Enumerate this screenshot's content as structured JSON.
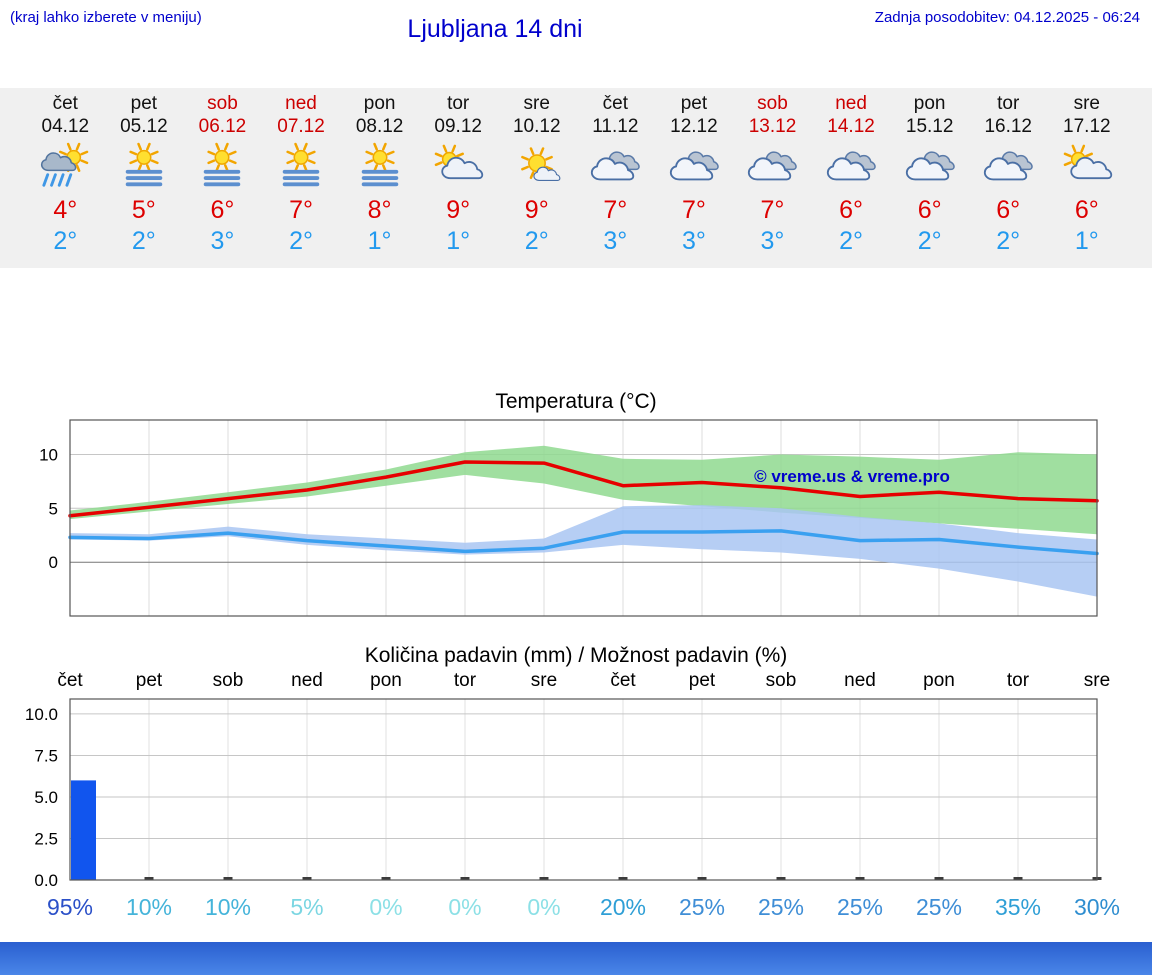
{
  "header": {
    "menu_hint": "(kraj lahko izberete v meniju)",
    "title": "Ljubljana 14 dni",
    "last_update": "Zadnja posodobitev: 04.12.2025 - 06:24"
  },
  "colors": {
    "accent_blue": "#0000cc",
    "temp_max_red": "#dd0000",
    "temp_min_blue": "#2299ee",
    "weekend_red": "#cc0000",
    "weekday_black": "#111111",
    "strip_bg": "#f0f0f0",
    "bar_blue": "#1155ee",
    "footer_top": "#2a5fd0",
    "footer_bottom": "#4a86e8"
  },
  "forecast": {
    "days": [
      {
        "name": "čet",
        "date": "04.12",
        "weekend": false,
        "icon": "sun-rain-icon",
        "tmax": "4°",
        "tmin": "2°"
      },
      {
        "name": "pet",
        "date": "05.12",
        "weekend": false,
        "icon": "sun-fog-icon",
        "tmax": "5°",
        "tmin": "2°"
      },
      {
        "name": "sob",
        "date": "06.12",
        "weekend": true,
        "icon": "sun-fog-icon",
        "tmax": "6°",
        "tmin": "3°"
      },
      {
        "name": "ned",
        "date": "07.12",
        "weekend": true,
        "icon": "sun-fog-icon",
        "tmax": "7°",
        "tmin": "2°"
      },
      {
        "name": "pon",
        "date": "08.12",
        "weekend": false,
        "icon": "sun-fog-icon",
        "tmax": "8°",
        "tmin": "1°"
      },
      {
        "name": "tor",
        "date": "09.12",
        "weekend": false,
        "icon": "sun-cloud-icon",
        "tmax": "9°",
        "tmin": "1°"
      },
      {
        "name": "sre",
        "date": "10.12",
        "weekend": false,
        "icon": "mostly-sun-icon",
        "tmax": "9°",
        "tmin": "2°"
      },
      {
        "name": "čet",
        "date": "11.12",
        "weekend": false,
        "icon": "cloudy-icon",
        "tmax": "7°",
        "tmin": "3°"
      },
      {
        "name": "pet",
        "date": "12.12",
        "weekend": false,
        "icon": "cloudy-icon",
        "tmax": "7°",
        "tmin": "3°"
      },
      {
        "name": "sob",
        "date": "13.12",
        "weekend": true,
        "icon": "cloudy-icon",
        "tmax": "7°",
        "tmin": "3°"
      },
      {
        "name": "ned",
        "date": "14.12",
        "weekend": true,
        "icon": "cloudy-icon",
        "tmax": "6°",
        "tmin": "2°"
      },
      {
        "name": "pon",
        "date": "15.12",
        "weekend": false,
        "icon": "cloudy-icon",
        "tmax": "6°",
        "tmin": "2°"
      },
      {
        "name": "tor",
        "date": "16.12",
        "weekend": false,
        "icon": "cloudy-icon",
        "tmax": "6°",
        "tmin": "2°"
      },
      {
        "name": "sre",
        "date": "17.12",
        "weekend": false,
        "icon": "sun-cloud-icon",
        "tmax": "6°",
        "tmin": "1°"
      }
    ]
  },
  "chart_data": [
    {
      "type": "line",
      "title": "Temperatura (°C)",
      "categories": [
        "čet",
        "pet",
        "sob",
        "ned",
        "pon",
        "tor",
        "sre",
        "čet",
        "pet",
        "sob",
        "ned",
        "pon",
        "tor",
        "sre"
      ],
      "ylim": [
        -5,
        13.2
      ],
      "yticks": [
        0,
        5,
        10
      ],
      "grid": true,
      "watermark": "© vreme.us & vreme.pro",
      "series": [
        {
          "name": "max-temperature-line",
          "kind": "line",
          "color": "#e60000",
          "values": [
            4.3,
            5.1,
            5.9,
            6.7,
            7.9,
            9.3,
            9.2,
            7.1,
            7.4,
            6.9,
            6.1,
            6.5,
            5.9,
            5.7
          ]
        },
        {
          "name": "min-temperature-line",
          "kind": "line",
          "color": "#3aa0f0",
          "values": [
            2.3,
            2.2,
            2.7,
            2.0,
            1.5,
            1.0,
            1.3,
            2.8,
            2.8,
            2.9,
            2.0,
            2.1,
            1.4,
            0.8
          ]
        },
        {
          "name": "max-temperature-range-band",
          "kind": "band",
          "color": "#8fd98f",
          "upper": [
            4.8,
            5.6,
            6.5,
            7.4,
            8.6,
            10.2,
            10.8,
            9.6,
            9.5,
            10.0,
            9.8,
            9.5,
            10.2,
            10.0
          ],
          "lower": [
            4.0,
            4.7,
            5.4,
            6.1,
            7.1,
            8.1,
            7.3,
            5.8,
            5.2,
            4.6,
            4.1,
            3.6,
            3.1,
            2.6
          ]
        },
        {
          "name": "min-temperature-range-band",
          "kind": "band",
          "color": "#a9c6f2",
          "upper": [
            2.7,
            2.6,
            3.3,
            2.6,
            2.2,
            1.8,
            2.2,
            5.2,
            5.3,
            5.0,
            4.2,
            3.6,
            2.7,
            2.1
          ],
          "lower": [
            2.1,
            2.0,
            2.4,
            1.6,
            1.1,
            0.7,
            0.9,
            1.6,
            1.2,
            0.9,
            0.3,
            -0.6,
            -1.8,
            -3.2
          ]
        }
      ]
    },
    {
      "type": "bar",
      "title": "Količina padavin (mm) / Možnost padavin (%)",
      "categories": [
        "čet",
        "pet",
        "sob",
        "ned",
        "pon",
        "tor",
        "sre",
        "čet",
        "pet",
        "sob",
        "ned",
        "pon",
        "tor",
        "sre"
      ],
      "values": [
        6.0,
        0,
        0,
        0,
        0,
        0,
        0,
        0,
        0,
        0,
        0,
        0,
        0,
        0
      ],
      "ylim": [
        0,
        10.9
      ],
      "ytick_labels": [
        "0.0",
        "2.5",
        "5.0",
        "7.5",
        "10.0"
      ],
      "bar_color": "#1155ee",
      "probabilities": [
        {
          "label": "95%",
          "color": "#2b50c8"
        },
        {
          "label": "10%",
          "color": "#45b4da"
        },
        {
          "label": "10%",
          "color": "#45b4da"
        },
        {
          "label": "5%",
          "color": "#7bd6e2"
        },
        {
          "label": "0%",
          "color": "#8ce0e6"
        },
        {
          "label": "0%",
          "color": "#8ce0e6"
        },
        {
          "label": "0%",
          "color": "#8ce0e6"
        },
        {
          "label": "20%",
          "color": "#2f9fd6"
        },
        {
          "label": "25%",
          "color": "#3f8ed6"
        },
        {
          "label": "25%",
          "color": "#3f8ed6"
        },
        {
          "label": "25%",
          "color": "#3f8ed6"
        },
        {
          "label": "25%",
          "color": "#3f8ed6"
        },
        {
          "label": "35%",
          "color": "#2f9fd6"
        },
        {
          "label": "30%",
          "color": "#2f8ed0"
        }
      ]
    }
  ]
}
